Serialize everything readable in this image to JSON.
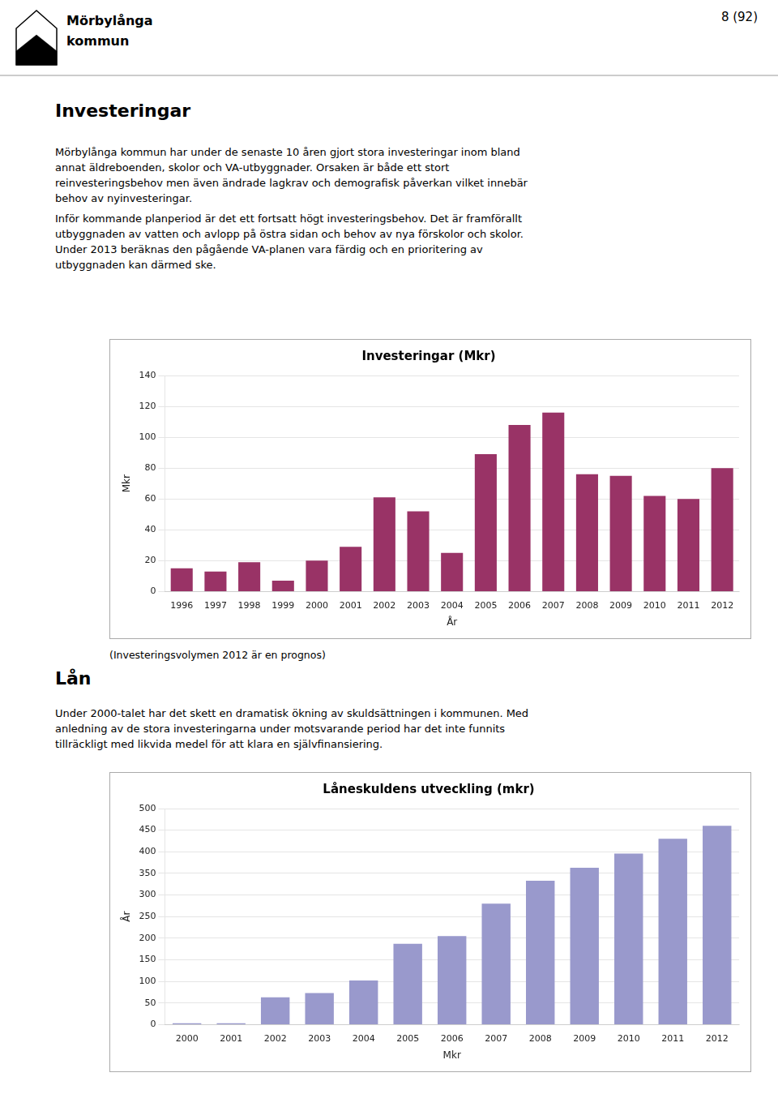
{
  "page_title": "8 (92)",
  "logo_text": [
    "Mörbylånga",
    "kommun"
  ],
  "heading1": "Investeringar",
  "body_text1": [
    "Mörbylånga kommun har under de senaste 10 åren gjort stora investeringar inom bland",
    "annat äldreboenden, skolor och VA-utbyggnader. Orsaken är både ett stort",
    "reinvesteringsbehov men även ändrade lagkrav och demografisk påverkan vilket innebär",
    "behov av nyinvesteringar."
  ],
  "body_text2": [
    "Inför kommande planperiod är det ett fortsatt högt investeringsbehov. Det är framförallt",
    "utbyggnaden av vatten och avlopp på östra sidan och behov av nya förskolor och skolor.",
    "Under 2013 beräknas den pågående VA-planen vara färdig och en prioritering av",
    "utbyggnaden kan därmed ske."
  ],
  "heading2": "Lån",
  "body_text3": [
    "Under 2000-talet har det skett en dramatisk ökning av skuldsättningen i kommunen. Med",
    "anledning av de stora investeringarna under motsvarande period har det inte funnits",
    "tillräckligt med likvida medel för att klara en självfinansiering."
  ],
  "chart_data": [
    {
      "type": "bar",
      "title": "Investeringar (Mkr)",
      "x_label": "År",
      "y_label": "Mkr",
      "categories": [
        "1996",
        "1997",
        "1998",
        "1999",
        "2000",
        "2001",
        "2002",
        "2003",
        "2004",
        "2005",
        "2006",
        "2007",
        "2008",
        "2009",
        "2010",
        "2011",
        "2012"
      ],
      "values": [
        15,
        13,
        19,
        7,
        20,
        29,
        61,
        52,
        25,
        89,
        108,
        116,
        76,
        75,
        62,
        60,
        80
      ],
      "color": "#993366",
      "ylim": [
        0,
        140
      ],
      "yticks": [
        0,
        20,
        40,
        60,
        80,
        100,
        120,
        140
      ],
      "grid": true,
      "annotations": [
        "(Investeringsvolymen 2012 är en prognos)"
      ]
    },
    {
      "type": "bar",
      "title": "Låneskuldens utveckling (mkr)",
      "x_label": "Mkr",
      "y_label": "År",
      "categories": [
        "2000",
        "2001",
        "2002",
        "2003",
        "2004",
        "2005",
        "2006",
        "2007",
        "2008",
        "2009",
        "2010",
        "2011",
        "2012"
      ],
      "values": [
        3,
        3,
        63,
        73,
        102,
        187,
        205,
        280,
        333,
        363,
        396,
        430,
        460
      ],
      "color": "#9999cc",
      "ylim": [
        0,
        500
      ],
      "yticks": [
        0,
        50,
        100,
        150,
        200,
        250,
        300,
        350,
        400,
        450,
        500
      ],
      "grid": true
    }
  ]
}
